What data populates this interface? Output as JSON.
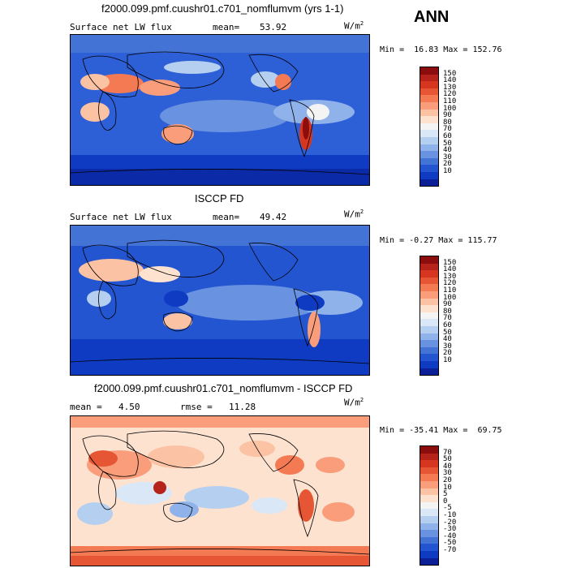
{
  "season": "ANN",
  "panels": [
    {
      "title": "f2000.099.pmf.cuushr01.c701_nomflumvm (yrs 1-1)",
      "variable": "Surface net LW flux",
      "stat_label": "mean=",
      "stat_value": "53.92",
      "stat2_label": "",
      "stat2_value": "",
      "units": "W/m",
      "units_sup": "2",
      "min_label": "Min =",
      "min_value": "16.83",
      "max_label": "Max =",
      "max_value": "152.76",
      "colorbar_ticks": [
        "150",
        "140",
        "130",
        "120",
        "110",
        "100",
        "90",
        "80",
        "70",
        "60",
        "50",
        "40",
        "30",
        "20",
        "10"
      ],
      "colorbar_colors": [
        "#8c0d0d",
        "#b5231a",
        "#d6361f",
        "#e75634",
        "#f47a54",
        "#f99d7b",
        "#fcc2a4",
        "#fde2d0",
        "#f4f4f4",
        "#d9e7f7",
        "#b5cff1",
        "#8fb2ea",
        "#6992e0",
        "#4473d6",
        "#2355d0",
        "#0e3bc2",
        "#0b1f97"
      ]
    },
    {
      "title": "ISCCP FD",
      "variable": "Surface net LW flux",
      "stat_label": "mean=",
      "stat_value": "49.42",
      "stat2_label": "",
      "stat2_value": "",
      "units": "W/m",
      "units_sup": "2",
      "min_label": "Min =",
      "min_value": "-0.27",
      "max_label": "Max =",
      "max_value": "115.77",
      "colorbar_ticks": [
        "150",
        "140",
        "130",
        "120",
        "110",
        "100",
        "90",
        "80",
        "70",
        "60",
        "50",
        "40",
        "30",
        "20",
        "10"
      ],
      "colorbar_colors": [
        "#8c0d0d",
        "#b5231a",
        "#d6361f",
        "#e75634",
        "#f47a54",
        "#f99d7b",
        "#fcc2a4",
        "#fde2d0",
        "#f4f4f4",
        "#d9e7f7",
        "#b5cff1",
        "#8fb2ea",
        "#6992e0",
        "#4473d6",
        "#2355d0",
        "#0e3bc2",
        "#0b1f97"
      ]
    },
    {
      "title": "f2000.099.pmf.cuushr01.c701_nomflumvm - ISCCP FD",
      "variable": "",
      "stat_label": "mean =",
      "stat_value": "4.50",
      "stat2_label": "rmse =",
      "stat2_value": "11.28",
      "units": "W/m",
      "units_sup": "2",
      "min_label": "Min =",
      "min_value": "-35.41",
      "max_label": "Max =",
      "max_value": "69.75",
      "colorbar_ticks": [
        "70",
        "50",
        "40",
        "30",
        "20",
        "10",
        "5",
        "0",
        "-5",
        "-10",
        "-20",
        "-30",
        "-40",
        "-50",
        "-70"
      ],
      "colorbar_colors": [
        "#8c0d0d",
        "#b5231a",
        "#d6361f",
        "#e75634",
        "#f47a54",
        "#f99d7b",
        "#fcc2a4",
        "#fde2d0",
        "#f4f4f4",
        "#d9e7f7",
        "#b5cff1",
        "#8fb2ea",
        "#6992e0",
        "#4473d6",
        "#2355d0",
        "#0e3bc2",
        "#0b1f97"
      ]
    }
  ]
}
